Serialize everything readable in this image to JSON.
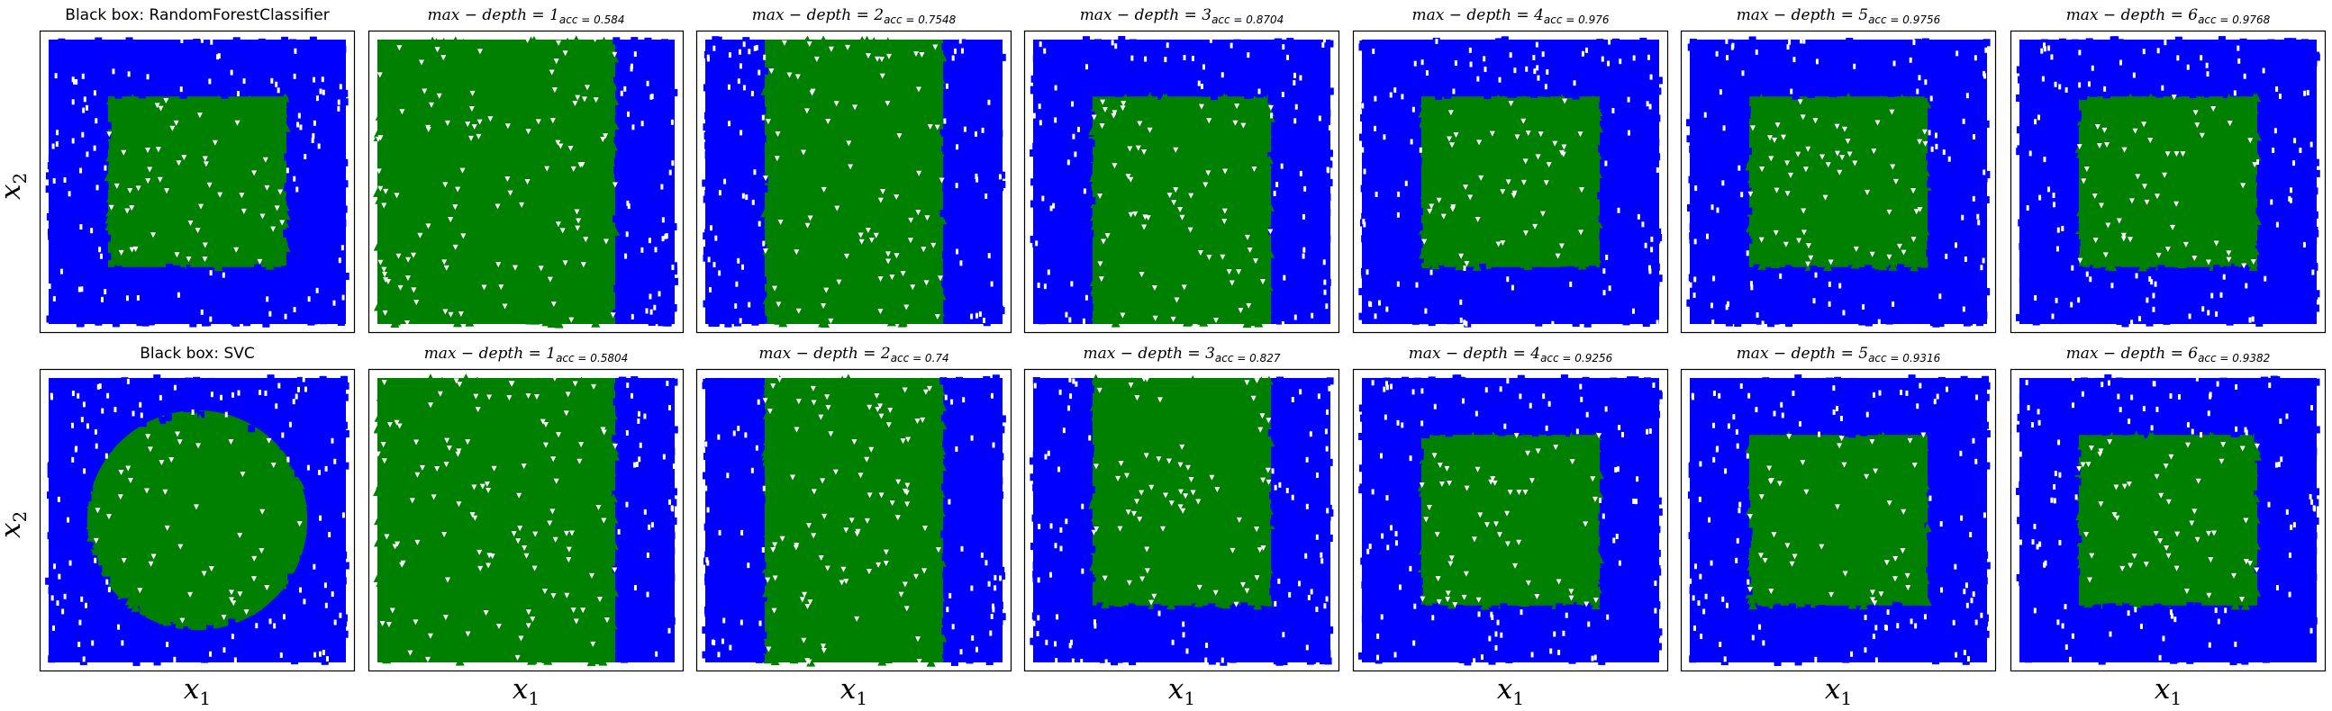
{
  "colors": {
    "outside": "#0000ff",
    "inside": "#008000",
    "frame": "#000000"
  },
  "axis_labels": {
    "x": "x",
    "x_sub": "1",
    "y": "x",
    "y_sub": "2"
  },
  "chart_data": [
    {
      "type": "scatter",
      "row": 1,
      "col": 1,
      "title": "Black box: RandomForestClassifier",
      "region": "square",
      "green_x": [
        0.2,
        0.8
      ],
      "green_y": [
        0.2,
        0.8
      ],
      "xlim": [
        0,
        1
      ],
      "ylim": [
        0,
        1
      ],
      "axes_ticks": false
    },
    {
      "type": "scatter",
      "row": 1,
      "col": 2,
      "title": "max − depth = 1",
      "title_sub": "acc = 0.584",
      "region": "rect",
      "green_x": [
        0.0,
        0.8
      ],
      "green_y": [
        0.0,
        1.0
      ],
      "xlim": [
        0,
        1
      ],
      "ylim": [
        0,
        1
      ]
    },
    {
      "type": "scatter",
      "row": 1,
      "col": 3,
      "title": "max − depth = 2",
      "title_sub": "acc = 0.7548",
      "region": "rect",
      "green_x": [
        0.2,
        0.8
      ],
      "green_y": [
        0.0,
        1.0
      ],
      "xlim": [
        0,
        1
      ],
      "ylim": [
        0,
        1
      ]
    },
    {
      "type": "scatter",
      "row": 1,
      "col": 4,
      "title": "max − depth = 3",
      "title_sub": "acc = 0.8704",
      "region": "rect",
      "green_x": [
        0.2,
        0.8
      ],
      "green_y": [
        0.0,
        0.8
      ],
      "xlim": [
        0,
        1
      ],
      "ylim": [
        0,
        1
      ]
    },
    {
      "type": "scatter",
      "row": 1,
      "col": 5,
      "title": "max − depth = 4",
      "title_sub": "acc = 0.976",
      "region": "rect",
      "green_x": [
        0.2,
        0.8
      ],
      "green_y": [
        0.2,
        0.8
      ],
      "xlim": [
        0,
        1
      ],
      "ylim": [
        0,
        1
      ]
    },
    {
      "type": "scatter",
      "row": 1,
      "col": 6,
      "title": "max − depth = 5",
      "title_sub": "acc = 0.9756",
      "region": "rect",
      "green_x": [
        0.2,
        0.8
      ],
      "green_y": [
        0.2,
        0.8
      ],
      "xlim": [
        0,
        1
      ],
      "ylim": [
        0,
        1
      ]
    },
    {
      "type": "scatter",
      "row": 1,
      "col": 7,
      "title": "max − depth = 6",
      "title_sub": "acc = 0.9768",
      "region": "rect",
      "green_x": [
        0.2,
        0.8
      ],
      "green_y": [
        0.2,
        0.8
      ],
      "xlim": [
        0,
        1
      ],
      "ylim": [
        0,
        1
      ]
    },
    {
      "type": "scatter",
      "row": 2,
      "col": 1,
      "title": "Black box: SVC",
      "region": "circle",
      "circle_center": [
        0.5,
        0.5
      ],
      "circle_radius": 0.37,
      "xlim": [
        0,
        1
      ],
      "ylim": [
        0,
        1
      ]
    },
    {
      "type": "scatter",
      "row": 2,
      "col": 2,
      "title": "max − depth = 1",
      "title_sub": "acc = 0.5804",
      "region": "rect",
      "green_x": [
        0.0,
        0.8
      ],
      "green_y": [
        0.0,
        1.0
      ],
      "xlim": [
        0,
        1
      ],
      "ylim": [
        0,
        1
      ]
    },
    {
      "type": "scatter",
      "row": 2,
      "col": 3,
      "title": "max − depth = 2",
      "title_sub": "acc = 0.74",
      "region": "rect",
      "green_x": [
        0.2,
        0.8
      ],
      "green_y": [
        0.0,
        1.0
      ],
      "xlim": [
        0,
        1
      ],
      "ylim": [
        0,
        1
      ]
    },
    {
      "type": "scatter",
      "row": 2,
      "col": 4,
      "title": "max − depth = 3",
      "title_sub": "acc = 0.827",
      "region": "rect",
      "green_x": [
        0.2,
        0.8
      ],
      "green_y": [
        0.2,
        1.0
      ],
      "xlim": [
        0,
        1
      ],
      "ylim": [
        0,
        1
      ]
    },
    {
      "type": "scatter",
      "row": 2,
      "col": 5,
      "title": "max − depth = 4",
      "title_sub": "acc = 0.9256",
      "region": "rect",
      "green_x": [
        0.2,
        0.8
      ],
      "green_y": [
        0.2,
        0.8
      ],
      "xlim": [
        0,
        1
      ],
      "ylim": [
        0,
        1
      ]
    },
    {
      "type": "scatter",
      "row": 2,
      "col": 6,
      "title": "max − depth = 5",
      "title_sub": "acc = 0.9316",
      "region": "rect",
      "green_x": [
        0.2,
        0.8
      ],
      "green_y": [
        0.2,
        0.8
      ],
      "xlim": [
        0,
        1
      ],
      "ylim": [
        0,
        1
      ]
    },
    {
      "type": "scatter",
      "row": 2,
      "col": 7,
      "title": "max − depth = 6",
      "title_sub": "acc = 0.9382",
      "region": "rect",
      "green_x": [
        0.2,
        0.8
      ],
      "green_y": [
        0.2,
        0.8
      ],
      "xlim": [
        0,
        1
      ],
      "ylim": [
        0,
        1
      ]
    }
  ]
}
